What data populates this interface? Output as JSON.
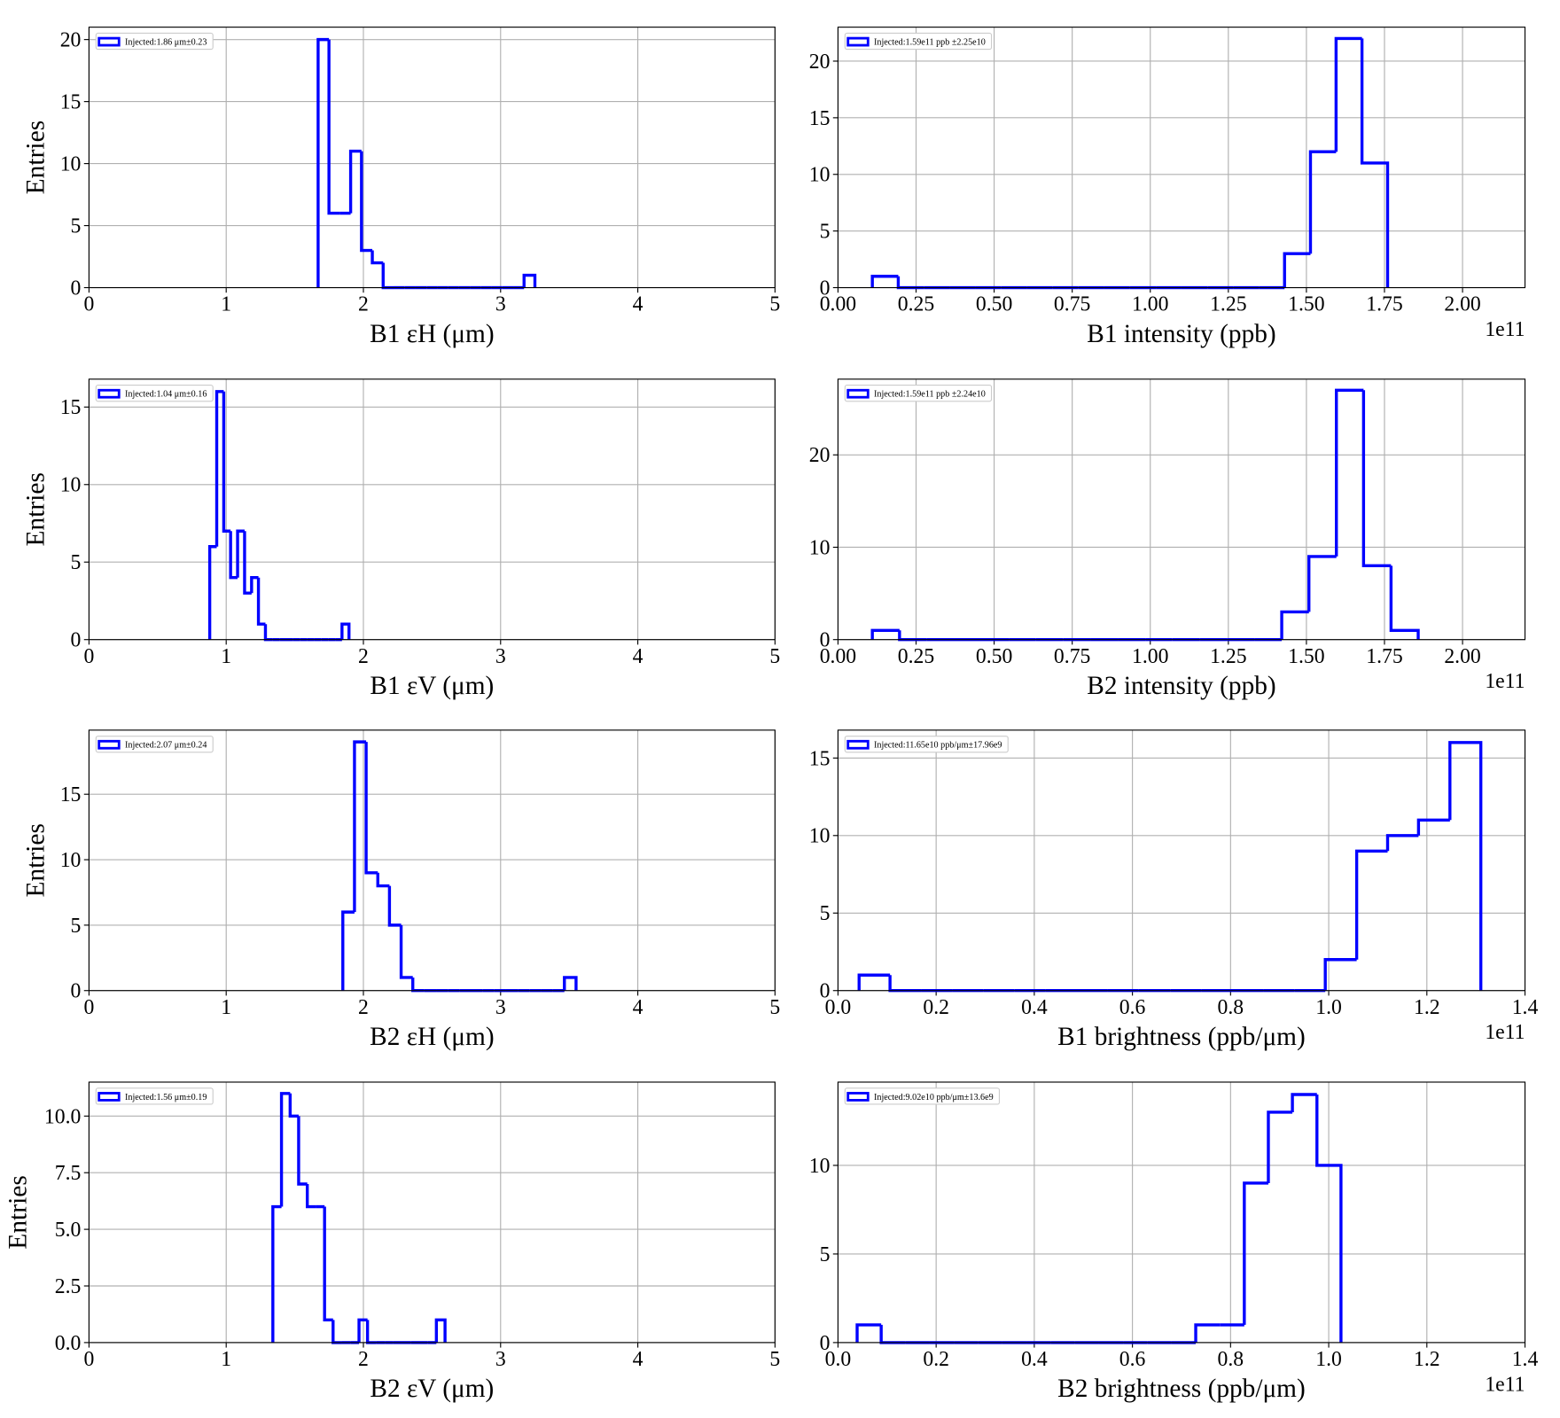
{
  "chart_data": [
    {
      "type": "histogram",
      "xlabel": "B1 εH (μm)",
      "ylabel": "Entries",
      "bins": [
        1.67,
        1.749,
        1.828,
        1.907,
        1.986,
        2.065,
        2.144,
        2.223,
        2.302,
        2.381,
        2.46,
        2.539,
        2.618,
        2.697,
        2.776,
        2.855,
        2.934,
        3.013,
        3.092,
        3.171,
        3.25
      ],
      "series": [
        {
          "name": "Injected:1.86 μm±0.23",
          "color": "#0000ff",
          "values": [
            20,
            6,
            6,
            11,
            3,
            2,
            0,
            0,
            0,
            0,
            0,
            0,
            0,
            0,
            0,
            0,
            0,
            0,
            0,
            1
          ]
        }
      ],
      "xlim": [
        0,
        5
      ],
      "ylim": [
        0,
        21
      ],
      "xticks": [
        0,
        1,
        2,
        3,
        4,
        5
      ],
      "yticks": [
        0,
        5,
        10,
        15,
        20
      ],
      "grid": true,
      "legend": "upper left"
    },
    {
      "type": "histogram",
      "xlabel": "B1 intensity (ppb)",
      "x_offset_label": "1e11",
      "bins": [
        0.11,
        0.193,
        0.275,
        0.358,
        0.44,
        0.523,
        0.605,
        0.688,
        0.77,
        0.853,
        0.935,
        1.018,
        1.1,
        1.183,
        1.265,
        1.348,
        1.43,
        1.513,
        1.595,
        1.678,
        1.76
      ],
      "series": [
        {
          "name": "Injected:1.59e11 ppb ±2.25e10",
          "color": "#0000ff",
          "values": [
            1,
            0,
            0,
            0,
            0,
            0,
            0,
            0,
            0,
            0,
            0,
            0,
            0,
            0,
            0,
            0,
            3,
            12,
            22,
            11
          ]
        }
      ],
      "xlim": [
        0,
        2.2
      ],
      "ylim": [
        0,
        23
      ],
      "xticks": [
        {
          "value": 0,
          "label": "0.00"
        },
        0.25,
        {
          "value": 0.5,
          "label": "0.50"
        },
        0.75,
        {
          "value": 1,
          "label": "1.00"
        },
        1.25,
        {
          "value": 1.5,
          "label": "1.50"
        },
        1.75,
        {
          "value": 2,
          "label": "2.00"
        }
      ],
      "yticks": [
        0,
        5,
        10,
        15,
        20
      ],
      "grid": true,
      "legend": "upper left"
    },
    {
      "type": "histogram",
      "xlabel": "B1 εV (μm)",
      "ylabel": "Entries",
      "bins": [
        0.88,
        0.931,
        0.982,
        1.032,
        1.083,
        1.134,
        1.185,
        1.235,
        1.286,
        1.337,
        1.388,
        1.438,
        1.489,
        1.54,
        1.591,
        1.641,
        1.692,
        1.743,
        1.794,
        1.844,
        1.895
      ],
      "series": [
        {
          "name": "Injected:1.04 μm±0.16",
          "color": "#0000ff",
          "values": [
            6,
            16,
            7,
            4,
            7,
            3,
            4,
            1,
            0,
            0,
            0,
            0,
            0,
            0,
            0,
            0,
            0,
            0,
            0,
            1
          ]
        }
      ],
      "xlim": [
        0,
        5
      ],
      "ylim": [
        0,
        16.8
      ],
      "xticks": [
        0,
        1,
        2,
        3,
        4,
        5
      ],
      "yticks": [
        0,
        5,
        10,
        15
      ],
      "grid": true,
      "legend": "upper left"
    },
    {
      "type": "histogram",
      "xlabel": "B2 intensity (ppb)",
      "x_offset_label": "1e11",
      "bins": [
        0.11,
        0.197,
        0.285,
        0.372,
        0.46,
        0.547,
        0.634,
        0.722,
        0.809,
        0.897,
        0.984,
        1.071,
        1.159,
        1.246,
        1.334,
        1.421,
        1.508,
        1.596,
        1.683,
        1.771,
        1.858
      ],
      "series": [
        {
          "name": "Injected:1.59e11 ppb ±2.24e10",
          "color": "#0000ff",
          "values": [
            1,
            0,
            0,
            0,
            0,
            0,
            0,
            0,
            0,
            0,
            0,
            0,
            0,
            0,
            0,
            3,
            9,
            27,
            8,
            1
          ]
        }
      ],
      "xlim": [
        0,
        2.2
      ],
      "ylim": [
        0,
        28.2
      ],
      "xticks": [
        {
          "value": 0,
          "label": "0.00"
        },
        0.25,
        {
          "value": 0.5,
          "label": "0.50"
        },
        0.75,
        {
          "value": 1,
          "label": "1.00"
        },
        1.25,
        {
          "value": 1.5,
          "label": "1.50"
        },
        1.75,
        {
          "value": 2,
          "label": "2.00"
        }
      ],
      "yticks": [
        0,
        10,
        20
      ],
      "grid": true,
      "legend": "upper left"
    },
    {
      "type": "histogram",
      "xlabel": "B2 εH (μm)",
      "ylabel": "Entries",
      "bins": [
        1.85,
        1.935,
        2.02,
        2.105,
        2.19,
        2.275,
        2.36,
        2.445,
        2.53,
        2.615,
        2.7,
        2.785,
        2.87,
        2.955,
        3.04,
        3.125,
        3.21,
        3.295,
        3.38,
        3.465,
        3.55
      ],
      "series": [
        {
          "name": "Injected:2.07 μm±0.24",
          "color": "#0000ff",
          "values": [
            6,
            19,
            9,
            8,
            5,
            1,
            0,
            0,
            0,
            0,
            0,
            0,
            0,
            0,
            0,
            0,
            0,
            0,
            0,
            1
          ]
        }
      ],
      "xlim": [
        0,
        5
      ],
      "ylim": [
        0,
        19.9
      ],
      "xticks": [
        0,
        1,
        2,
        3,
        4,
        5
      ],
      "yticks": [
        0,
        5,
        10,
        15
      ],
      "grid": true,
      "legend": "upper left"
    },
    {
      "type": "histogram",
      "xlabel": "B1 brightness (ppb/μm)",
      "x_offset_label": "1e11",
      "bins": [
        0.043,
        0.106,
        0.17,
        0.233,
        0.296,
        0.36,
        0.423,
        0.486,
        0.55,
        0.613,
        0.677,
        0.74,
        0.803,
        0.867,
        0.93,
        0.993,
        1.057,
        1.12,
        1.183,
        1.247,
        1.31
      ],
      "series": [
        {
          "name": "Injected:11.65e10 ppb/μm±17.96e9",
          "color": "#0000ff",
          "values": [
            1,
            0,
            0,
            0,
            0,
            0,
            0,
            0,
            0,
            0,
            0,
            0,
            0,
            0,
            0,
            2,
            9,
            10,
            11,
            16
          ]
        }
      ],
      "xlim": [
        0,
        1.4
      ],
      "ylim": [
        0,
        16.8
      ],
      "xticks": [
        {
          "value": 0,
          "label": "0.0"
        },
        0.2,
        0.4,
        0.6,
        0.8,
        {
          "value": 1,
          "label": "1.0"
        },
        1.2,
        1.4
      ],
      "yticks": [
        0,
        5,
        10,
        15
      ],
      "grid": true,
      "legend": "upper left"
    },
    {
      "type": "histogram",
      "xlabel": "B2 εV (μm)",
      "ylabel": "Entries",
      "bins": [
        1.34,
        1.403,
        1.466,
        1.528,
        1.591,
        1.654,
        1.717,
        1.779,
        1.842,
        1.905,
        1.968,
        2.03,
        2.093,
        2.156,
        2.219,
        2.281,
        2.344,
        2.407,
        2.47,
        2.532,
        2.595
      ],
      "series": [
        {
          "name": "Injected:1.56 μm±0.19",
          "color": "#0000ff",
          "values": [
            6,
            11,
            10,
            7,
            6,
            6,
            1,
            0,
            0,
            0,
            1,
            0,
            0,
            0,
            0,
            0,
            0,
            0,
            0,
            1
          ]
        }
      ],
      "xlim": [
        0,
        5
      ],
      "ylim": [
        0,
        11.5
      ],
      "xticks": [
        0,
        1,
        2,
        3,
        4,
        5
      ],
      "yticks": [
        {
          "value": 0,
          "label": "0.0"
        },
        2.5,
        {
          "value": 5,
          "label": "5.0"
        },
        7.5,
        {
          "value": 10,
          "label": "10.0"
        }
      ],
      "grid": true,
      "legend": "upper left"
    },
    {
      "type": "histogram",
      "xlabel": "B2 brightness (ppb/μm)",
      "x_offset_label": "1e11",
      "bins": [
        0.039,
        0.088,
        0.138,
        0.187,
        0.236,
        0.286,
        0.335,
        0.384,
        0.433,
        0.483,
        0.532,
        0.581,
        0.631,
        0.68,
        0.729,
        0.779,
        0.828,
        0.877,
        0.926,
        0.976,
        1.025
      ],
      "series": [
        {
          "name": "Injected:9.02e10 ppb/μm±13.6e9",
          "color": "#0000ff",
          "values": [
            1,
            0,
            0,
            0,
            0,
            0,
            0,
            0,
            0,
            0,
            0,
            0,
            0,
            0,
            1,
            1,
            9,
            13,
            14,
            10
          ]
        }
      ],
      "xlim": [
        0,
        1.4
      ],
      "ylim": [
        0,
        14.7
      ],
      "xticks": [
        {
          "value": 0,
          "label": "0.0"
        },
        0.2,
        0.4,
        0.6,
        0.8,
        {
          "value": 1,
          "label": "1.0"
        },
        1.2,
        1.4
      ],
      "yticks": [
        0,
        5,
        10
      ],
      "grid": true,
      "legend": "upper left"
    }
  ]
}
